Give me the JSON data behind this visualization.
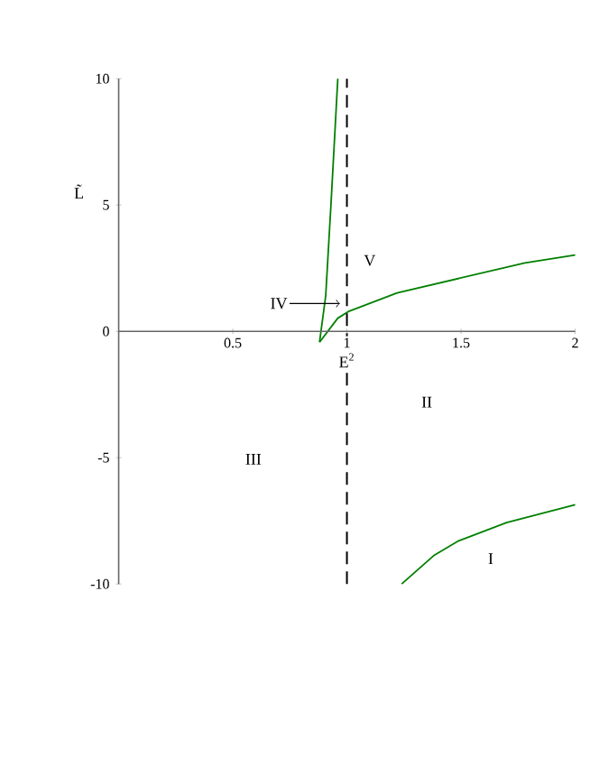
{
  "chart_data": {
    "type": "line",
    "ylabel": "L̃",
    "xlim": [
      0,
      2
    ],
    "ylim": [
      -10,
      10
    ],
    "xticks": [
      0.5,
      1,
      1.5,
      2
    ],
    "yticks": [
      -10,
      -5,
      0,
      5,
      10
    ],
    "series": [
      {
        "color": "#008000",
        "x": [
          0.88,
          0.907,
          0.93,
          0.96
        ],
        "values": [
          -0.43,
          1.4,
          5,
          10
        ]
      },
      {
        "color": "#008000",
        "x": [
          0.88,
          0.96,
          1.01,
          1.22,
          1.78,
          2.0
        ],
        "values": [
          -0.43,
          0.52,
          0.8,
          1.52,
          2.71,
          3.02
        ]
      },
      {
        "color": "#008000",
        "x": [
          1.24,
          1.38,
          1.49,
          1.7,
          2.0
        ],
        "values": [
          -10,
          -8.88,
          -8.29,
          -7.57,
          -6.86
        ]
      }
    ],
    "ref_lines": [
      {
        "axis": "x",
        "value": 1,
        "label": "E$^{2}$",
        "color": "#000000",
        "line_style": "dashed"
      }
    ],
    "annotations": [
      "V",
      {
        "text": "IV",
        "x": 0.97,
        "y": 1.1
      },
      "II",
      "III",
      "I"
    ],
    "grid": false,
    "marker": "none",
    "line_style": "solid"
  }
}
